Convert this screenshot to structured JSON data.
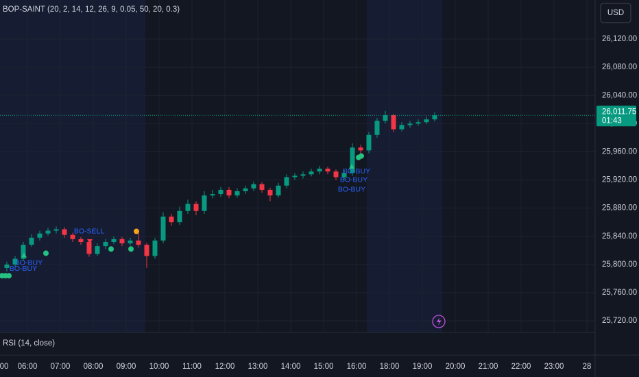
{
  "chart_data": {
    "type": "candlestick",
    "title": "BOP-SAINT (20, 2, 14, 12, 26, 9, 0.05, 50, 20, 0.3)",
    "currency": "USD",
    "subpane_title": "RSI (14, close)",
    "last_price": {
      "value": 26011.75,
      "label": "26,011.75"
    },
    "countdown": "01:43",
    "up_color": "#089981",
    "down_color": "#f23645",
    "grid": true,
    "xlim": [
      0.1667,
      18.25
    ],
    "xticks": [
      {
        "value": 0,
        "label": "00"
      },
      {
        "value": 1,
        "label": "06:00"
      },
      {
        "value": 2,
        "label": "07:00"
      },
      {
        "value": 3,
        "label": "08:00"
      },
      {
        "value": 4,
        "label": "09:00"
      },
      {
        "value": 5,
        "label": "10:00"
      },
      {
        "value": 6,
        "label": "11:00"
      },
      {
        "value": 7,
        "label": "12:00"
      },
      {
        "value": 8,
        "label": "13:00"
      },
      {
        "value": 9,
        "label": "14:00"
      },
      {
        "value": 10,
        "label": "15:00"
      },
      {
        "value": 11,
        "label": "16:00"
      },
      {
        "value": 12,
        "label": "18:00"
      },
      {
        "value": 13,
        "label": "19:00"
      },
      {
        "value": 14,
        "label": "20:00"
      },
      {
        "value": 15,
        "label": "21:00"
      },
      {
        "value": 16,
        "label": "22:00"
      },
      {
        "value": 17,
        "label": "23:00"
      },
      {
        "value": 18,
        "label": "28"
      }
    ],
    "ylim": [
      25703.5,
      26175.5
    ],
    "yticks": [
      {
        "value": 25720,
        "label": "25,720.00"
      },
      {
        "value": 25760,
        "label": "25,760.00"
      },
      {
        "value": 25800,
        "label": "25,800.00"
      },
      {
        "value": 25840,
        "label": "25,840.00"
      },
      {
        "value": 25880,
        "label": "25,880.00"
      },
      {
        "value": 25920,
        "label": "25,920.00"
      },
      {
        "value": 25960,
        "label": "25,960.00"
      },
      {
        "value": 26000,
        "label": "26,000.00"
      },
      {
        "value": 26040,
        "label": "26,040.00"
      },
      {
        "value": 26080,
        "label": "26,080.00"
      },
      {
        "value": 26120,
        "label": "26,120.00"
      }
    ],
    "x": [
      0.375,
      0.625,
      0.875,
      1.125,
      1.375,
      1.625,
      1.875,
      2.125,
      2.375,
      2.625,
      2.875,
      3.125,
      3.375,
      3.625,
      3.875,
      4.125,
      4.375,
      4.625,
      4.875,
      5.125,
      5.375,
      5.625,
      5.875,
      6.125,
      6.375,
      6.625,
      6.875,
      7.125,
      7.375,
      7.625,
      7.875,
      8.125,
      8.375,
      8.625,
      8.875,
      9.125,
      9.375,
      9.625,
      9.875,
      10.125,
      10.375,
      10.625,
      10.875,
      11.125,
      11.375,
      11.625,
      11.875,
      12.125,
      12.375,
      12.625,
      12.875,
      13.125,
      13.375
    ],
    "open": [
      25795,
      25800,
      25808,
      25828,
      25838,
      25844,
      25848,
      25850,
      25842,
      25836,
      25832,
      25815,
      25826,
      25832,
      25836,
      25830,
      25834,
      25828,
      25812,
      25834,
      25868,
      25860,
      25876,
      25886,
      25876,
      25898,
      25900,
      25906,
      25898,
      25904,
      25908,
      25914,
      25906,
      25898,
      25912,
      25924,
      25926,
      25928,
      25932,
      25936,
      25932,
      25924,
      25930,
      25966,
      25962,
      25984,
      26004,
      26012,
      25992,
      25998,
      26000,
      26002,
      26006
    ],
    "high": [
      25804,
      25812,
      25832,
      25843,
      25848,
      25852,
      25854,
      25853,
      25845,
      25839,
      25834,
      25830,
      25836,
      25840,
      25839,
      25838,
      25848,
      25831,
      25838,
      25874,
      25872,
      25882,
      25892,
      25890,
      25904,
      25906,
      25910,
      25910,
      25908,
      25912,
      25918,
      25917,
      25909,
      25916,
      25928,
      25930,
      25932,
      25936,
      25940,
      25939,
      25935,
      25934,
      25972,
      25970,
      25988,
      26008,
      26018,
      26014,
      26002,
      26004,
      26006,
      26010,
      26016
    ],
    "low": [
      25790,
      25797,
      25805,
      25825,
      25834,
      25841,
      25844,
      25838,
      25832,
      25828,
      25811,
      25812,
      25822,
      25829,
      25826,
      25827,
      25824,
      25795,
      25808,
      25830,
      25855,
      25856,
      25872,
      25870,
      25872,
      25894,
      25896,
      25894,
      25895,
      25900,
      25904,
      25902,
      25890,
      25895,
      25908,
      25920,
      25922,
      25925,
      25928,
      25928,
      25920,
      25920,
      25926,
      25956,
      25958,
      25980,
      26000,
      25988,
      25989,
      25994,
      25997,
      25999,
      26003
    ],
    "close": [
      25800,
      25808,
      25828,
      25838,
      25844,
      25848,
      25850,
      25842,
      25836,
      25832,
      25815,
      25826,
      25832,
      25836,
      25830,
      25834,
      25828,
      25812,
      25834,
      25868,
      25860,
      25876,
      25886,
      25876,
      25898,
      25900,
      25906,
      25898,
      25904,
      25908,
      25914,
      25906,
      25898,
      25912,
      25924,
      25926,
      25928,
      25932,
      25936,
      25932,
      25924,
      25930,
      25966,
      25962,
      25984,
      26004,
      26012,
      25992,
      25998,
      26000,
      26002,
      26006,
      26011.75
    ],
    "signals": [
      {
        "shape": "dot",
        "x": 0.229,
        "price": 25784,
        "color": "#26c281"
      },
      {
        "shape": "dot",
        "x": 0.333,
        "price": 25784,
        "color": "#26c281"
      },
      {
        "shape": "dot",
        "x": 0.4375,
        "price": 25784,
        "color": "#26c281"
      },
      {
        "shape": "triangle-up",
        "x": 0.896,
        "price": 25813,
        "color": "#26c281"
      },
      {
        "shape": "dot",
        "x": 1.5625,
        "price": 25816,
        "color": "#26c281"
      },
      {
        "shape": "triangle-down",
        "x": 2.896,
        "price": 25833,
        "color": "#f23645"
      },
      {
        "shape": "dot",
        "x": 3.542,
        "price": 25822,
        "color": "#26c281"
      },
      {
        "shape": "dot",
        "x": 4.146,
        "price": 25822,
        "color": "#26c281"
      },
      {
        "shape": "dot",
        "x": 4.3125,
        "price": 25847,
        "color": "#f7a21b"
      },
      {
        "shape": "triangle-up",
        "x": 10.854,
        "price": 25939,
        "color": "#26c281"
      },
      {
        "shape": "dot",
        "x": 11.0625,
        "price": 25952,
        "color": "#26c281"
      },
      {
        "shape": "dot",
        "x": 11.146,
        "price": 25954,
        "color": "#26c281"
      }
    ],
    "annotations": [
      {
        "text": "BO-BUY",
        "x": 0.875,
        "price": 25794
      },
      {
        "text": "BO-BUY",
        "x": 1.042,
        "price": 25802
      },
      {
        "text": "BO-SELL",
        "x": 2.875,
        "price": 25847
      },
      {
        "text": "BO-BUY",
        "x": 11.0,
        "price": 25932
      },
      {
        "text": "BO-BUY",
        "x": 10.917,
        "price": 25920
      },
      {
        "text": "BO-BUY",
        "x": 10.854,
        "price": 25906
      }
    ]
  }
}
